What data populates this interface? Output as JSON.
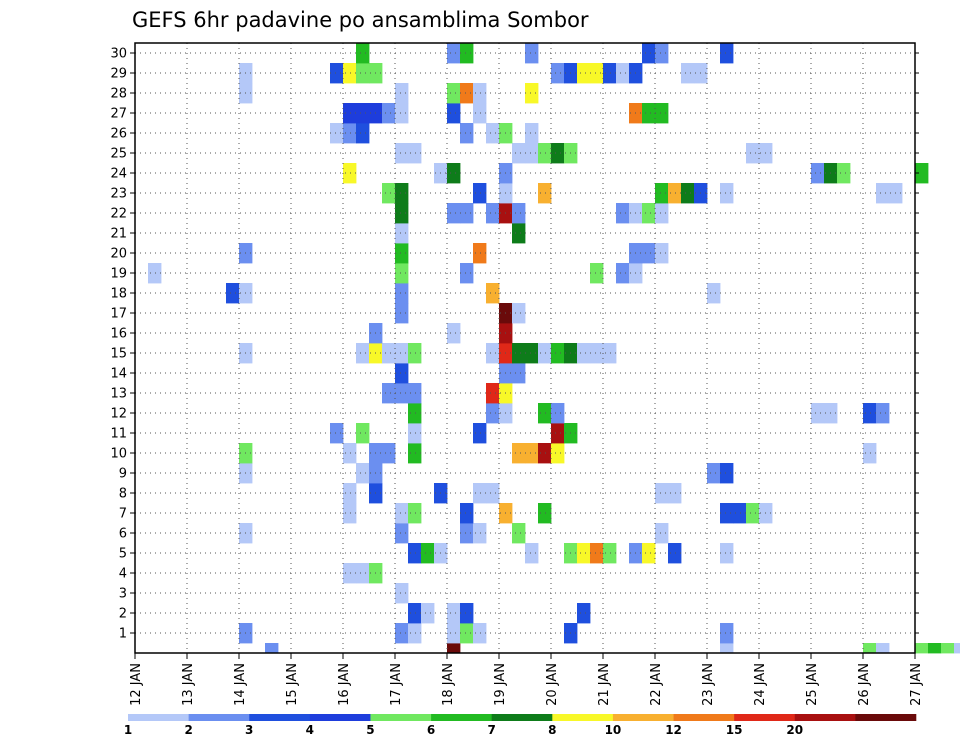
{
  "chart_data": {
    "type": "heatmap",
    "title": "GEFS 6hr padavine po ansamblima Sombor",
    "x_tick_labels": [
      "12 JAN",
      "13 JAN",
      "14 JAN",
      "15 JAN",
      "16 JAN",
      "17 JAN",
      "18 JAN",
      "19 JAN",
      "20 JAN",
      "21 JAN",
      "22 JAN",
      "23 JAN",
      "24 JAN",
      "25 JAN",
      "26 JAN",
      "27 JAN"
    ],
    "y_tick_labels": [
      "1",
      "2",
      "3",
      "4",
      "5",
      "6",
      "7",
      "8",
      "9",
      "10",
      "11",
      "12",
      "13",
      "14",
      "15",
      "16",
      "17",
      "18",
      "19",
      "20",
      "21",
      "22",
      "23",
      "24",
      "25",
      "26",
      "27",
      "28",
      "29",
      "30"
    ],
    "x_range": [
      "12 JAN 00Z",
      "27 JAN 00Z"
    ],
    "x_step_hours": 6,
    "y_range": [
      0,
      30
    ],
    "grid": true,
    "colorbar": {
      "labels": [
        "1",
        "2",
        "3",
        "4",
        "5",
        "6",
        "7",
        "8",
        "10",
        "12",
        "15",
        "20"
      ],
      "colors": [
        "#b4c8f8",
        "#6b8ff0",
        "#1f4fde",
        "#1e3ddc",
        "#70e860",
        "#22bb22",
        "#0e7c1a",
        "#f8f828",
        "#f8b030",
        "#f07a1a",
        "#e02818",
        "#a81010",
        "#6a0a0a"
      ]
    },
    "cells": [
      {
        "member": 0,
        "step": 10,
        "level": 2
      },
      {
        "member": 0,
        "step": 24,
        "level": 14
      },
      {
        "member": 0,
        "step": 45,
        "level": 1
      },
      {
        "member": 0,
        "step": 56,
        "level": 5
      },
      {
        "member": 0,
        "step": 57,
        "level": 1
      },
      {
        "member": 0,
        "step": 60,
        "level": 5
      },
      {
        "member": 0,
        "step": 61,
        "level": 6
      },
      {
        "member": 0,
        "step": 62,
        "level": 5
      },
      {
        "member": 0,
        "step": 63,
        "level": 1
      },
      {
        "member": 1,
        "step": 8,
        "level": 2
      },
      {
        "member": 1,
        "step": 20,
        "level": 2
      },
      {
        "member": 1,
        "step": 21,
        "level": 1
      },
      {
        "member": 1,
        "step": 24,
        "level": 1
      },
      {
        "member": 1,
        "step": 25,
        "level": 5
      },
      {
        "member": 1,
        "step": 26,
        "level": 1
      },
      {
        "member": 1,
        "step": 33,
        "level": 3
      },
      {
        "member": 1,
        "step": 45,
        "level": 2
      },
      {
        "member": 2,
        "step": 21,
        "level": 3
      },
      {
        "member": 2,
        "step": 22,
        "level": 1
      },
      {
        "member": 2,
        "step": 24,
        "level": 1
      },
      {
        "member": 2,
        "step": 25,
        "level": 3
      },
      {
        "member": 2,
        "step": 34,
        "level": 3
      },
      {
        "member": 3,
        "step": 20,
        "level": 1
      },
      {
        "member": 4,
        "step": 16,
        "level": 1
      },
      {
        "member": 4,
        "step": 17,
        "level": 1
      },
      {
        "member": 4,
        "step": 18,
        "level": 5
      },
      {
        "member": 5,
        "step": 21,
        "level": 3
      },
      {
        "member": 5,
        "step": 22,
        "level": 6
      },
      {
        "member": 5,
        "step": 23,
        "level": 1
      },
      {
        "member": 5,
        "step": 30,
        "level": 1
      },
      {
        "member": 5,
        "step": 33,
        "level": 5
      },
      {
        "member": 5,
        "step": 34,
        "level": 8
      },
      {
        "member": 5,
        "step": 35,
        "level": 10
      },
      {
        "member": 5,
        "step": 36,
        "level": 5
      },
      {
        "member": 5,
        "step": 38,
        "level": 2
      },
      {
        "member": 5,
        "step": 39,
        "level": 8
      },
      {
        "member": 5,
        "step": 41,
        "level": 3
      },
      {
        "member": 5,
        "step": 45,
        "level": 1
      },
      {
        "member": 6,
        "step": 8,
        "level": 1
      },
      {
        "member": 6,
        "step": 20,
        "level": 2
      },
      {
        "member": 6,
        "step": 25,
        "level": 2
      },
      {
        "member": 6,
        "step": 26,
        "level": 1
      },
      {
        "member": 6,
        "step": 29,
        "level": 5
      },
      {
        "member": 6,
        "step": 40,
        "level": 1
      },
      {
        "member": 7,
        "step": 16,
        "level": 1
      },
      {
        "member": 7,
        "step": 20,
        "level": 1
      },
      {
        "member": 7,
        "step": 21,
        "level": 5
      },
      {
        "member": 7,
        "step": 25,
        "level": 3
      },
      {
        "member": 7,
        "step": 28,
        "level": 9
      },
      {
        "member": 7,
        "step": 31,
        "level": 6
      },
      {
        "member": 7,
        "step": 45,
        "level": 3
      },
      {
        "member": 7,
        "step": 46,
        "level": 3
      },
      {
        "member": 7,
        "step": 47,
        "level": 5
      },
      {
        "member": 7,
        "step": 48,
        "level": 1
      },
      {
        "member": 8,
        "step": 16,
        "level": 1
      },
      {
        "member": 8,
        "step": 18,
        "level": 3
      },
      {
        "member": 8,
        "step": 23,
        "level": 3
      },
      {
        "member": 8,
        "step": 26,
        "level": 1
      },
      {
        "member": 8,
        "step": 27,
        "level": 1
      },
      {
        "member": 8,
        "step": 40,
        "level": 1
      },
      {
        "member": 8,
        "step": 41,
        "level": 1
      },
      {
        "member": 9,
        "step": 8,
        "level": 1
      },
      {
        "member": 9,
        "step": 17,
        "level": 1
      },
      {
        "member": 9,
        "step": 18,
        "level": 2
      },
      {
        "member": 9,
        "step": 44,
        "level": 2
      },
      {
        "member": 9,
        "step": 45,
        "level": 3
      },
      {
        "member": 10,
        "step": 8,
        "level": 5
      },
      {
        "member": 10,
        "step": 16,
        "level": 1
      },
      {
        "member": 10,
        "step": 18,
        "level": 2
      },
      {
        "member": 10,
        "step": 19,
        "level": 2
      },
      {
        "member": 10,
        "step": 21,
        "level": 6
      },
      {
        "member": 10,
        "step": 29,
        "level": 9
      },
      {
        "member": 10,
        "step": 30,
        "level": 9
      },
      {
        "member": 10,
        "step": 31,
        "level": 12
      },
      {
        "member": 10,
        "step": 32,
        "level": 8
      },
      {
        "member": 10,
        "step": 56,
        "level": 1
      },
      {
        "member": 11,
        "step": 15,
        "level": 2
      },
      {
        "member": 11,
        "step": 17,
        "level": 5
      },
      {
        "member": 11,
        "step": 21,
        "level": 1
      },
      {
        "member": 11,
        "step": 26,
        "level": 3
      },
      {
        "member": 11,
        "step": 32,
        "level": 12
      },
      {
        "member": 11,
        "step": 33,
        "level": 6
      },
      {
        "member": 12,
        "step": 21,
        "level": 6
      },
      {
        "member": 12,
        "step": 27,
        "level": 2
      },
      {
        "member": 12,
        "step": 28,
        "level": 1
      },
      {
        "member": 12,
        "step": 31,
        "level": 6
      },
      {
        "member": 12,
        "step": 32,
        "level": 2
      },
      {
        "member": 12,
        "step": 52,
        "level": 1
      },
      {
        "member": 12,
        "step": 53,
        "level": 1
      },
      {
        "member": 12,
        "step": 56,
        "level": 3
      },
      {
        "member": 12,
        "step": 57,
        "level": 2
      },
      {
        "member": 13,
        "step": 19,
        "level": 2
      },
      {
        "member": 13,
        "step": 20,
        "level": 2
      },
      {
        "member": 13,
        "step": 21,
        "level": 2
      },
      {
        "member": 13,
        "step": 27,
        "level": 11
      },
      {
        "member": 13,
        "step": 28,
        "level": 8
      },
      {
        "member": 14,
        "step": 20,
        "level": 3
      },
      {
        "member": 14,
        "step": 28,
        "level": 2
      },
      {
        "member": 14,
        "step": 29,
        "level": 2
      },
      {
        "member": 15,
        "step": 17,
        "level": 1
      },
      {
        "member": 15,
        "step": 18,
        "level": 8
      },
      {
        "member": 15,
        "step": 19,
        "level": 1
      },
      {
        "member": 15,
        "step": 20,
        "level": 1
      },
      {
        "member": 15,
        "step": 21,
        "level": 5
      },
      {
        "member": 15,
        "step": 27,
        "level": 1
      },
      {
        "member": 15,
        "step": 28,
        "level": 11
      },
      {
        "member": 15,
        "step": 29,
        "level": 7
      },
      {
        "member": 15,
        "step": 30,
        "level": 7
      },
      {
        "member": 15,
        "step": 31,
        "level": 1
      },
      {
        "member": 15,
        "step": 32,
        "level": 6
      },
      {
        "member": 15,
        "step": 33,
        "level": 7
      },
      {
        "member": 15,
        "step": 34,
        "level": 1
      },
      {
        "member": 15,
        "step": 35,
        "level": 1
      },
      {
        "member": 15,
        "step": 36,
        "level": 1
      },
      {
        "member": 15,
        "step": 8,
        "level": 1
      },
      {
        "member": 16,
        "step": 18,
        "level": 2
      },
      {
        "member": 16,
        "step": 24,
        "level": 1
      },
      {
        "member": 16,
        "step": 28,
        "level": 12
      },
      {
        "member": 17,
        "step": 20,
        "level": 2
      },
      {
        "member": 17,
        "step": 28,
        "level": 13
      },
      {
        "member": 17,
        "step": 29,
        "level": 1
      },
      {
        "member": 18,
        "step": 7,
        "level": 3
      },
      {
        "member": 18,
        "step": 8,
        "level": 1
      },
      {
        "member": 18,
        "step": 20,
        "level": 2
      },
      {
        "member": 18,
        "step": 27,
        "level": 9
      },
      {
        "member": 18,
        "step": 44,
        "level": 1
      },
      {
        "member": 19,
        "step": 1,
        "level": 1
      },
      {
        "member": 19,
        "step": 20,
        "level": 5
      },
      {
        "member": 19,
        "step": 25,
        "level": 2
      },
      {
        "member": 19,
        "step": 35,
        "level": 5
      },
      {
        "member": 19,
        "step": 37,
        "level": 2
      },
      {
        "member": 19,
        "step": 38,
        "level": 1
      },
      {
        "member": 20,
        "step": 8,
        "level": 2
      },
      {
        "member": 20,
        "step": 20,
        "level": 6
      },
      {
        "member": 20,
        "step": 26,
        "level": 10
      },
      {
        "member": 20,
        "step": 38,
        "level": 2
      },
      {
        "member": 20,
        "step": 39,
        "level": 2
      },
      {
        "member": 20,
        "step": 40,
        "level": 1
      },
      {
        "member": 21,
        "step": 20,
        "level": 1
      },
      {
        "member": 21,
        "step": 29,
        "level": 7
      },
      {
        "member": 22,
        "step": 20,
        "level": 7
      },
      {
        "member": 22,
        "step": 24,
        "level": 2
      },
      {
        "member": 22,
        "step": 25,
        "level": 2
      },
      {
        "member": 22,
        "step": 27,
        "level": 2
      },
      {
        "member": 22,
        "step": 28,
        "level": 12
      },
      {
        "member": 22,
        "step": 29,
        "level": 2
      },
      {
        "member": 22,
        "step": 37,
        "level": 2
      },
      {
        "member": 22,
        "step": 38,
        "level": 1
      },
      {
        "member": 22,
        "step": 39,
        "level": 5
      },
      {
        "member": 22,
        "step": 40,
        "level": 1
      },
      {
        "member": 23,
        "step": 19,
        "level": 5
      },
      {
        "member": 23,
        "step": 20,
        "level": 7
      },
      {
        "member": 23,
        "step": 26,
        "level": 3
      },
      {
        "member": 23,
        "step": 28,
        "level": 1
      },
      {
        "member": 23,
        "step": 31,
        "level": 9
      },
      {
        "member": 23,
        "step": 40,
        "level": 6
      },
      {
        "member": 23,
        "step": 41,
        "level": 9
      },
      {
        "member": 23,
        "step": 42,
        "level": 7
      },
      {
        "member": 23,
        "step": 43,
        "level": 3
      },
      {
        "member": 23,
        "step": 45,
        "level": 1
      },
      {
        "member": 23,
        "step": 57,
        "level": 1
      },
      {
        "member": 23,
        "step": 58,
        "level": 1
      },
      {
        "member": 24,
        "step": 16,
        "level": 8
      },
      {
        "member": 24,
        "step": 23,
        "level": 1
      },
      {
        "member": 24,
        "step": 24,
        "level": 7
      },
      {
        "member": 24,
        "step": 28,
        "level": 2
      },
      {
        "member": 24,
        "step": 52,
        "level": 2
      },
      {
        "member": 24,
        "step": 53,
        "level": 7
      },
      {
        "member": 24,
        "step": 54,
        "level": 5
      },
      {
        "member": 24,
        "step": 60,
        "level": 6
      },
      {
        "member": 25,
        "step": 20,
        "level": 1
      },
      {
        "member": 25,
        "step": 21,
        "level": 1
      },
      {
        "member": 25,
        "step": 29,
        "level": 1
      },
      {
        "member": 25,
        "step": 30,
        "level": 1
      },
      {
        "member": 25,
        "step": 31,
        "level": 5
      },
      {
        "member": 25,
        "step": 32,
        "level": 7
      },
      {
        "member": 25,
        "step": 33,
        "level": 5
      },
      {
        "member": 25,
        "step": 47,
        "level": 1
      },
      {
        "member": 25,
        "step": 48,
        "level": 1
      },
      {
        "member": 26,
        "step": 15,
        "level": 1
      },
      {
        "member": 26,
        "step": 16,
        "level": 2
      },
      {
        "member": 26,
        "step": 17,
        "level": 3
      },
      {
        "member": 26,
        "step": 25,
        "level": 2
      },
      {
        "member": 26,
        "step": 27,
        "level": 1
      },
      {
        "member": 26,
        "step": 28,
        "level": 5
      },
      {
        "member": 26,
        "step": 30,
        "level": 1
      },
      {
        "member": 27,
        "step": 16,
        "level": 4
      },
      {
        "member": 27,
        "step": 17,
        "level": 4
      },
      {
        "member": 27,
        "step": 18,
        "level": 4
      },
      {
        "member": 27,
        "step": 19,
        "level": 2
      },
      {
        "member": 27,
        "step": 20,
        "level": 1
      },
      {
        "member": 27,
        "step": 24,
        "level": 3
      },
      {
        "member": 27,
        "step": 26,
        "level": 1
      },
      {
        "member": 27,
        "step": 38,
        "level": 10
      },
      {
        "member": 27,
        "step": 39,
        "level": 6
      },
      {
        "member": 27,
        "step": 40,
        "level": 6
      },
      {
        "member": 28,
        "step": 8,
        "level": 1
      },
      {
        "member": 28,
        "step": 20,
        "level": 1
      },
      {
        "member": 28,
        "step": 24,
        "level": 5
      },
      {
        "member": 28,
        "step": 25,
        "level": 10
      },
      {
        "member": 28,
        "step": 26,
        "level": 1
      },
      {
        "member": 28,
        "step": 30,
        "level": 8
      },
      {
        "member": 29,
        "step": 8,
        "level": 1
      },
      {
        "member": 29,
        "step": 15,
        "level": 3
      },
      {
        "member": 29,
        "step": 16,
        "level": 8
      },
      {
        "member": 29,
        "step": 17,
        "level": 5
      },
      {
        "member": 29,
        "step": 18,
        "level": 5
      },
      {
        "member": 29,
        "step": 32,
        "level": 2
      },
      {
        "member": 29,
        "step": 33,
        "level": 3
      },
      {
        "member": 29,
        "step": 34,
        "level": 8
      },
      {
        "member": 29,
        "step": 35,
        "level": 8
      },
      {
        "member": 29,
        "step": 36,
        "level": 3
      },
      {
        "member": 29,
        "step": 37,
        "level": 1
      },
      {
        "member": 29,
        "step": 38,
        "level": 3
      },
      {
        "member": 29,
        "step": 42,
        "level": 1
      },
      {
        "member": 29,
        "step": 43,
        "level": 1
      },
      {
        "member": 30,
        "step": 17,
        "level": 6
      },
      {
        "member": 30,
        "step": 24,
        "level": 2
      },
      {
        "member": 30,
        "step": 25,
        "level": 6
      },
      {
        "member": 30,
        "step": 30,
        "level": 2
      },
      {
        "member": 30,
        "step": 39,
        "level": 3
      },
      {
        "member": 30,
        "step": 40,
        "level": 2
      },
      {
        "member": 30,
        "step": 45,
        "level": 3
      }
    ]
  }
}
